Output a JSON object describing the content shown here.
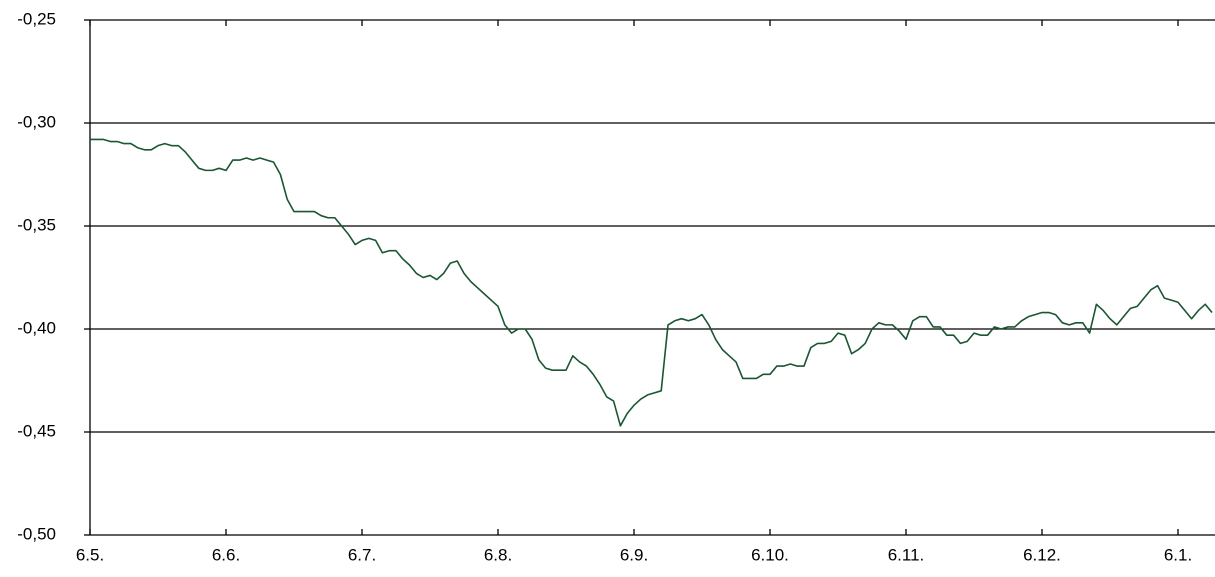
{
  "chart_data": {
    "type": "line",
    "categories": [
      "6.5.",
      null,
      null,
      null,
      null,
      null,
      null,
      null,
      null,
      null,
      null,
      null,
      null,
      null,
      null,
      null,
      null,
      null,
      null,
      null,
      "6.6.",
      null,
      null,
      null,
      null,
      null,
      null,
      null,
      null,
      null,
      null,
      null,
      null,
      null,
      null,
      null,
      null,
      null,
      null,
      null,
      "6.7.",
      null,
      null,
      null,
      null,
      null,
      null,
      null,
      null,
      null,
      null,
      null,
      null,
      null,
      null,
      null,
      null,
      null,
      null,
      null,
      "6.8.",
      null,
      null,
      null,
      null,
      null,
      null,
      null,
      null,
      null,
      null,
      null,
      null,
      null,
      null,
      null,
      null,
      null,
      null,
      null,
      "6.9.",
      null,
      null,
      null,
      null,
      null,
      null,
      null,
      null,
      null,
      null,
      null,
      null,
      null,
      null,
      null,
      null,
      null,
      null,
      null,
      "6.10.",
      null,
      null,
      null,
      null,
      null,
      null,
      null,
      null,
      null,
      null,
      null,
      null,
      null,
      null,
      null,
      null,
      null,
      null,
      null,
      "6.11.",
      null,
      null,
      null,
      null,
      null,
      null,
      null,
      null,
      null,
      null,
      null,
      null,
      null,
      null,
      null,
      null,
      null,
      null,
      null,
      "6.12.",
      null,
      null,
      null,
      null,
      null,
      null,
      null,
      null,
      null,
      null,
      null,
      null,
      null,
      null,
      null,
      null,
      null,
      null,
      null,
      "6.1.",
      null,
      null,
      null,
      null,
      null
    ],
    "values": [
      -0.308,
      -0.308,
      -0.308,
      -0.309,
      -0.309,
      -0.31,
      -0.31,
      -0.312,
      -0.313,
      -0.313,
      -0.311,
      -0.31,
      -0.311,
      -0.311,
      -0.314,
      -0.318,
      -0.322,
      -0.323,
      -0.323,
      -0.322,
      -0.323,
      -0.318,
      -0.318,
      -0.317,
      -0.318,
      -0.317,
      -0.318,
      -0.319,
      -0.325,
      -0.337,
      -0.343,
      -0.343,
      -0.343,
      -0.343,
      -0.345,
      -0.346,
      -0.346,
      -0.35,
      -0.354,
      -0.359,
      -0.357,
      -0.356,
      -0.357,
      -0.363,
      -0.362,
      -0.362,
      -0.366,
      -0.369,
      -0.373,
      -0.375,
      -0.374,
      -0.376,
      -0.373,
      -0.368,
      -0.367,
      -0.373,
      -0.377,
      -0.38,
      -0.383,
      -0.386,
      -0.389,
      -0.398,
      -0.402,
      -0.4,
      -0.4,
      -0.405,
      -0.415,
      -0.419,
      -0.42,
      -0.42,
      -0.42,
      -0.413,
      -0.416,
      -0.418,
      -0.422,
      -0.427,
      -0.433,
      -0.435,
      -0.447,
      -0.441,
      -0.437,
      -0.434,
      -0.432,
      -0.431,
      -0.43,
      -0.398,
      -0.396,
      -0.395,
      -0.396,
      -0.395,
      -0.393,
      -0.398,
      -0.405,
      -0.41,
      -0.413,
      -0.416,
      -0.424,
      -0.424,
      -0.424,
      -0.422,
      -0.422,
      -0.418,
      -0.418,
      -0.417,
      -0.418,
      -0.418,
      -0.409,
      -0.407,
      -0.407,
      -0.406,
      -0.402,
      -0.403,
      -0.412,
      -0.41,
      -0.407,
      -0.4,
      -0.397,
      -0.398,
      -0.398,
      -0.401,
      -0.405,
      -0.396,
      -0.394,
      -0.394,
      -0.399,
      -0.399,
      -0.403,
      -0.403,
      -0.407,
      -0.406,
      -0.402,
      -0.403,
      -0.403,
      -0.399,
      -0.4,
      -0.399,
      -0.399,
      -0.396,
      -0.394,
      -0.393,
      -0.392,
      -0.392,
      -0.393,
      -0.397,
      -0.398,
      -0.397,
      -0.397,
      -0.402,
      -0.388,
      -0.391,
      -0.395,
      -0.398,
      -0.394,
      -0.39,
      -0.389,
      -0.385,
      -0.381,
      -0.379,
      -0.385,
      -0.386,
      -0.387,
      -0.391,
      -0.395,
      -0.391,
      -0.388,
      -0.392
    ],
    "color": "#1a5632",
    "ylim": [
      -0.5,
      -0.25
    ],
    "yticks": [
      {
        "value": -0.5,
        "label": "-0,50"
      },
      {
        "value": -0.45,
        "label": "-0,45"
      },
      {
        "value": -0.4,
        "label": "-0,40"
      },
      {
        "value": -0.35,
        "label": "-0,35"
      },
      {
        "value": -0.3,
        "label": "-0,30"
      },
      {
        "value": -0.25,
        "label": "-0,25"
      }
    ],
    "grid": true
  }
}
